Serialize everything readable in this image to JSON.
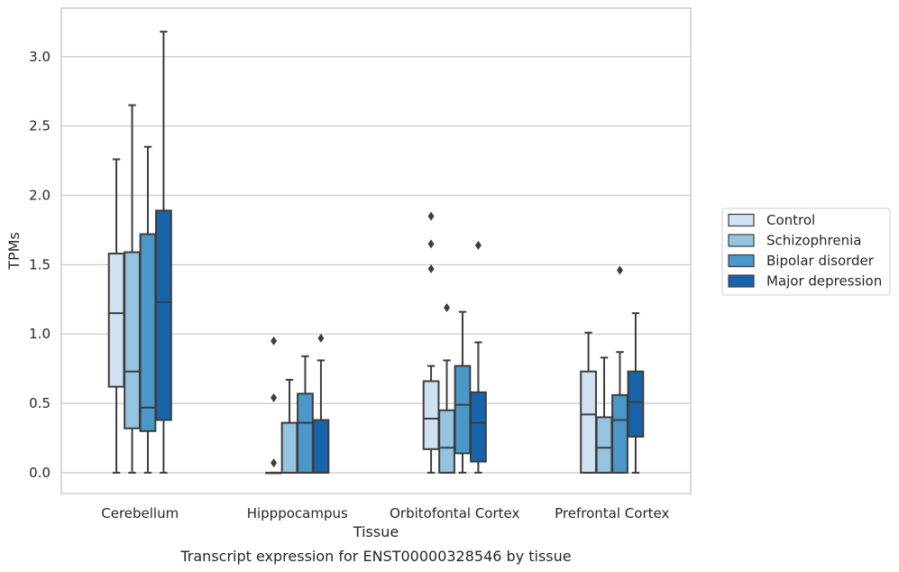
{
  "chart_data": {
    "type": "box",
    "caption": "Transcript expression for ENST00000328546 by tissue",
    "xlabel": "Tissue",
    "ylabel": "TPMs",
    "ylim": [
      -0.15,
      3.35
    ],
    "yticks": [
      0.0,
      0.5,
      1.0,
      1.5,
      2.0,
      2.5,
      3.0
    ],
    "ytick_labels": [
      "0.0",
      "0.5",
      "1.0",
      "1.5",
      "2.0",
      "2.5",
      "3.0"
    ],
    "grid": "horizontal",
    "legend_position": "outside-right",
    "categories": [
      "Cerebellum",
      "Hipppocampus",
      "Orbitofontal Cortex",
      "Prefrontal Cortex"
    ],
    "series": [
      {
        "name": "Control",
        "color": "#d0e1f2",
        "boxes": [
          {
            "whislo": 0.0,
            "q1": 0.62,
            "med": 1.15,
            "q3": 1.58,
            "whishi": 2.26,
            "fliers": []
          },
          {
            "whislo": 0.0,
            "q1": 0.0,
            "med": 0.0,
            "q3": 0.0,
            "whishi": 0.0,
            "fliers": [
              0.07,
              0.54,
              0.95
            ]
          },
          {
            "whislo": 0.0,
            "q1": 0.17,
            "med": 0.39,
            "q3": 0.66,
            "whishi": 0.77,
            "fliers": [
              1.47,
              1.65,
              1.85
            ]
          },
          {
            "whislo": 0.0,
            "q1": 0.0,
            "med": 0.42,
            "q3": 0.73,
            "whishi": 1.01,
            "fliers": []
          }
        ]
      },
      {
        "name": "Schizophrenia",
        "color": "#94c4df",
        "boxes": [
          {
            "whislo": 0.0,
            "q1": 0.32,
            "med": 0.73,
            "q3": 1.59,
            "whishi": 2.65,
            "fliers": []
          },
          {
            "whislo": 0.0,
            "q1": 0.0,
            "med": 0.0,
            "q3": 0.36,
            "whishi": 0.67,
            "fliers": []
          },
          {
            "whislo": 0.0,
            "q1": 0.0,
            "med": 0.18,
            "q3": 0.45,
            "whishi": 0.81,
            "fliers": [
              1.19
            ]
          },
          {
            "whislo": 0.0,
            "q1": 0.0,
            "med": 0.18,
            "q3": 0.4,
            "whishi": 0.83,
            "fliers": []
          }
        ]
      },
      {
        "name": "Bipolar disorder",
        "color": "#4a98c9",
        "boxes": [
          {
            "whislo": 0.0,
            "q1": 0.3,
            "med": 0.47,
            "q3": 1.72,
            "whishi": 2.35,
            "fliers": []
          },
          {
            "whislo": 0.0,
            "q1": 0.0,
            "med": 0.36,
            "q3": 0.57,
            "whishi": 0.84,
            "fliers": []
          },
          {
            "whislo": 0.0,
            "q1": 0.14,
            "med": 0.49,
            "q3": 0.77,
            "whishi": 1.16,
            "fliers": []
          },
          {
            "whislo": 0.0,
            "q1": 0.0,
            "med": 0.38,
            "q3": 0.56,
            "whishi": 0.87,
            "fliers": [
              1.46
            ]
          }
        ]
      },
      {
        "name": "Major depression",
        "color": "#1764ab",
        "boxes": [
          {
            "whislo": 0.0,
            "q1": 0.38,
            "med": 1.23,
            "q3": 1.89,
            "whishi": 3.18,
            "fliers": []
          },
          {
            "whislo": 0.0,
            "q1": 0.0,
            "med": 0.0,
            "q3": 0.38,
            "whishi": 0.81,
            "fliers": [
              0.97
            ]
          },
          {
            "whislo": 0.0,
            "q1": 0.08,
            "med": 0.36,
            "q3": 0.58,
            "whishi": 0.94,
            "fliers": [
              1.64
            ]
          },
          {
            "whislo": 0.0,
            "q1": 0.26,
            "med": 0.51,
            "q3": 0.73,
            "whishi": 1.15,
            "fliers": []
          }
        ]
      }
    ]
  }
}
